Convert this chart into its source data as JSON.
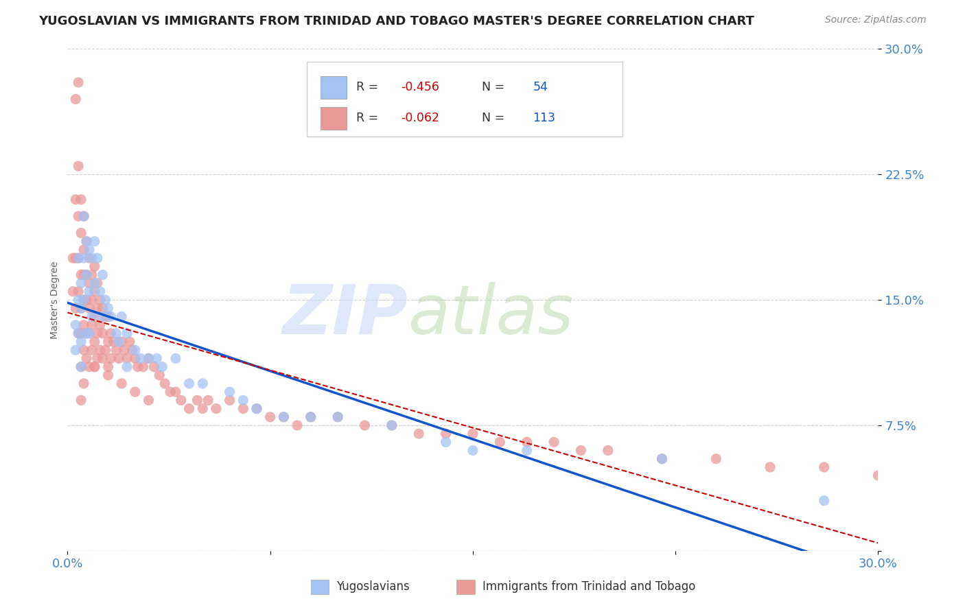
{
  "title": "YUGOSLAVIAN VS IMMIGRANTS FROM TRINIDAD AND TOBAGO MASTER'S DEGREE CORRELATION CHART",
  "source": "Source: ZipAtlas.com",
  "ylabel": "Master's Degree",
  "xmin": 0.0,
  "xmax": 0.3,
  "ymin": 0.0,
  "ymax": 0.3,
  "yticks": [
    0.0,
    0.075,
    0.15,
    0.225,
    0.3
  ],
  "ytick_labels": [
    "",
    "7.5%",
    "15.0%",
    "22.5%",
    "30.0%"
  ],
  "xtick_labels_left": "0.0%",
  "xtick_labels_right": "30.0%",
  "blue_color": "#a4c2f4",
  "pink_color": "#ea9999",
  "blue_line_color": "#1155cc",
  "pink_line_color": "#cc0000",
  "R_blue": -0.456,
  "N_blue": 54,
  "R_pink": -0.062,
  "N_pink": 113,
  "blue_scatter_x": [
    0.003,
    0.003,
    0.004,
    0.004,
    0.004,
    0.005,
    0.005,
    0.005,
    0.005,
    0.006,
    0.006,
    0.006,
    0.007,
    0.007,
    0.007,
    0.008,
    0.008,
    0.008,
    0.009,
    0.009,
    0.01,
    0.01,
    0.011,
    0.012,
    0.013,
    0.013,
    0.014,
    0.015,
    0.016,
    0.018,
    0.019,
    0.02,
    0.022,
    0.022,
    0.025,
    0.027,
    0.03,
    0.033,
    0.035,
    0.04,
    0.045,
    0.05,
    0.06,
    0.065,
    0.07,
    0.08,
    0.09,
    0.1,
    0.12,
    0.14,
    0.15,
    0.17,
    0.22,
    0.28
  ],
  "blue_scatter_y": [
    0.135,
    0.12,
    0.175,
    0.15,
    0.13,
    0.16,
    0.145,
    0.125,
    0.11,
    0.2,
    0.175,
    0.15,
    0.185,
    0.165,
    0.13,
    0.18,
    0.155,
    0.13,
    0.175,
    0.14,
    0.185,
    0.16,
    0.175,
    0.155,
    0.165,
    0.14,
    0.15,
    0.145,
    0.14,
    0.13,
    0.125,
    0.14,
    0.13,
    0.11,
    0.12,
    0.115,
    0.115,
    0.115,
    0.11,
    0.115,
    0.1,
    0.1,
    0.095,
    0.09,
    0.085,
    0.08,
    0.08,
    0.08,
    0.075,
    0.065,
    0.06,
    0.06,
    0.055,
    0.03
  ],
  "pink_scatter_x": [
    0.002,
    0.002,
    0.003,
    0.003,
    0.003,
    0.003,
    0.004,
    0.004,
    0.004,
    0.004,
    0.004,
    0.004,
    0.005,
    0.005,
    0.005,
    0.005,
    0.005,
    0.005,
    0.005,
    0.006,
    0.006,
    0.006,
    0.006,
    0.006,
    0.006,
    0.006,
    0.007,
    0.007,
    0.007,
    0.007,
    0.007,
    0.008,
    0.008,
    0.008,
    0.008,
    0.008,
    0.009,
    0.009,
    0.009,
    0.009,
    0.01,
    0.01,
    0.01,
    0.01,
    0.01,
    0.011,
    0.011,
    0.011,
    0.011,
    0.012,
    0.012,
    0.012,
    0.013,
    0.013,
    0.013,
    0.014,
    0.014,
    0.015,
    0.015,
    0.015,
    0.016,
    0.016,
    0.017,
    0.018,
    0.019,
    0.02,
    0.021,
    0.022,
    0.023,
    0.024,
    0.025,
    0.026,
    0.028,
    0.03,
    0.032,
    0.034,
    0.036,
    0.038,
    0.04,
    0.042,
    0.045,
    0.048,
    0.05,
    0.052,
    0.055,
    0.06,
    0.065,
    0.07,
    0.075,
    0.08,
    0.085,
    0.09,
    0.1,
    0.11,
    0.12,
    0.13,
    0.14,
    0.15,
    0.16,
    0.17,
    0.18,
    0.19,
    0.2,
    0.22,
    0.24,
    0.26,
    0.28,
    0.3,
    0.01,
    0.015,
    0.02,
    0.025,
    0.03
  ],
  "pink_scatter_y": [
    0.175,
    0.155,
    0.27,
    0.21,
    0.175,
    0.145,
    0.28,
    0.23,
    0.2,
    0.175,
    0.155,
    0.13,
    0.21,
    0.19,
    0.165,
    0.145,
    0.13,
    0.11,
    0.09,
    0.2,
    0.18,
    0.165,
    0.15,
    0.135,
    0.12,
    0.1,
    0.185,
    0.165,
    0.15,
    0.13,
    0.115,
    0.175,
    0.16,
    0.145,
    0.13,
    0.11,
    0.165,
    0.15,
    0.135,
    0.12,
    0.17,
    0.155,
    0.14,
    0.125,
    0.11,
    0.16,
    0.145,
    0.13,
    0.115,
    0.15,
    0.135,
    0.12,
    0.145,
    0.13,
    0.115,
    0.14,
    0.12,
    0.14,
    0.125,
    0.11,
    0.13,
    0.115,
    0.125,
    0.12,
    0.115,
    0.125,
    0.12,
    0.115,
    0.125,
    0.12,
    0.115,
    0.11,
    0.11,
    0.115,
    0.11,
    0.105,
    0.1,
    0.095,
    0.095,
    0.09,
    0.085,
    0.09,
    0.085,
    0.09,
    0.085,
    0.09,
    0.085,
    0.085,
    0.08,
    0.08,
    0.075,
    0.08,
    0.08,
    0.075,
    0.075,
    0.07,
    0.07,
    0.07,
    0.065,
    0.065,
    0.065,
    0.06,
    0.06,
    0.055,
    0.055,
    0.05,
    0.05,
    0.045,
    0.11,
    0.105,
    0.1,
    0.095,
    0.09
  ],
  "bottom_labels": [
    "Yugoslavians",
    "Immigrants from Trinidad and Tobago"
  ]
}
